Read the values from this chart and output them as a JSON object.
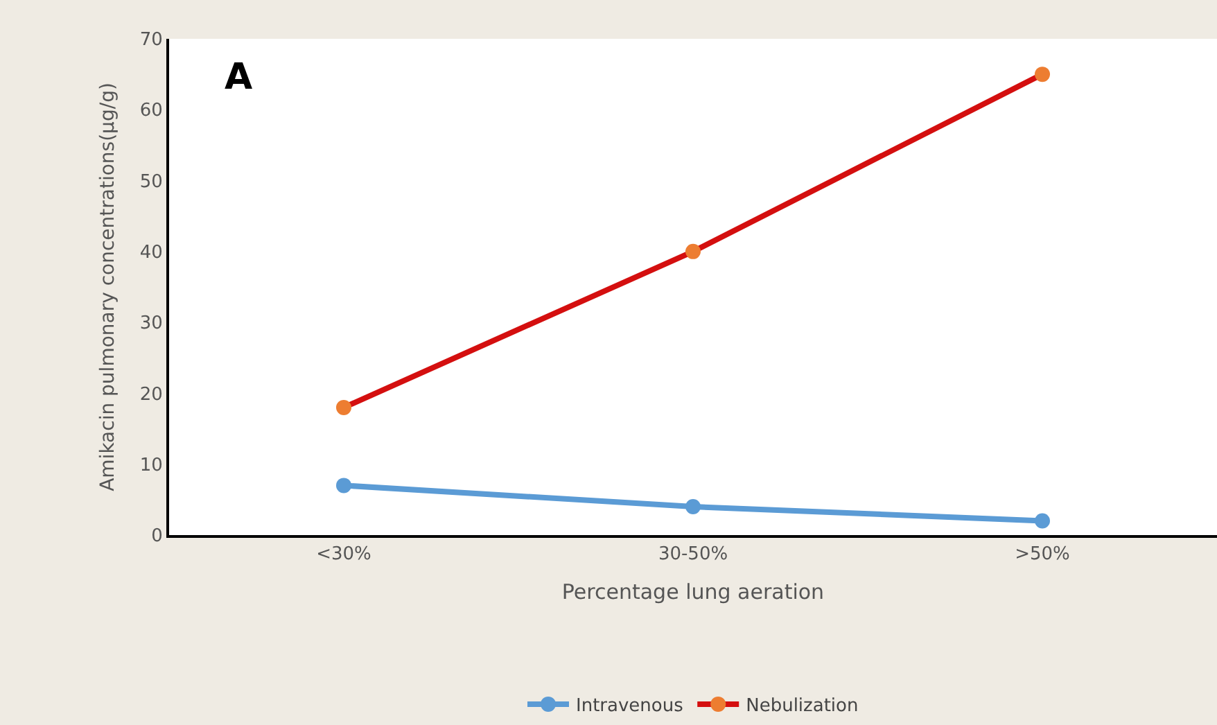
{
  "chart_data": {
    "type": "line",
    "title": "A",
    "xlabel": "Percentage lung aeration",
    "ylabel": "Amikacin pulmonary concentrations(µg/g)",
    "categories": [
      "<30%",
      "30-50%",
      ">50%"
    ],
    "series": [
      {
        "name": "Intravenous",
        "color": "#5b9bd5",
        "values": [
          7,
          4,
          2
        ]
      },
      {
        "name": "Nebulization",
        "color": "#d40f0f",
        "colors": [
          "#ed7d31",
          "#ed7d31",
          "#ed7d31"
        ],
        "values": [
          18,
          40,
          65
        ]
      }
    ],
    "ylim": [
      0,
      70
    ],
    "yticks": [
      0,
      10,
      20,
      30,
      40,
      50,
      60,
      70
    ],
    "legend": "bottom",
    "marker": "circle",
    "line_style": "solid"
  }
}
